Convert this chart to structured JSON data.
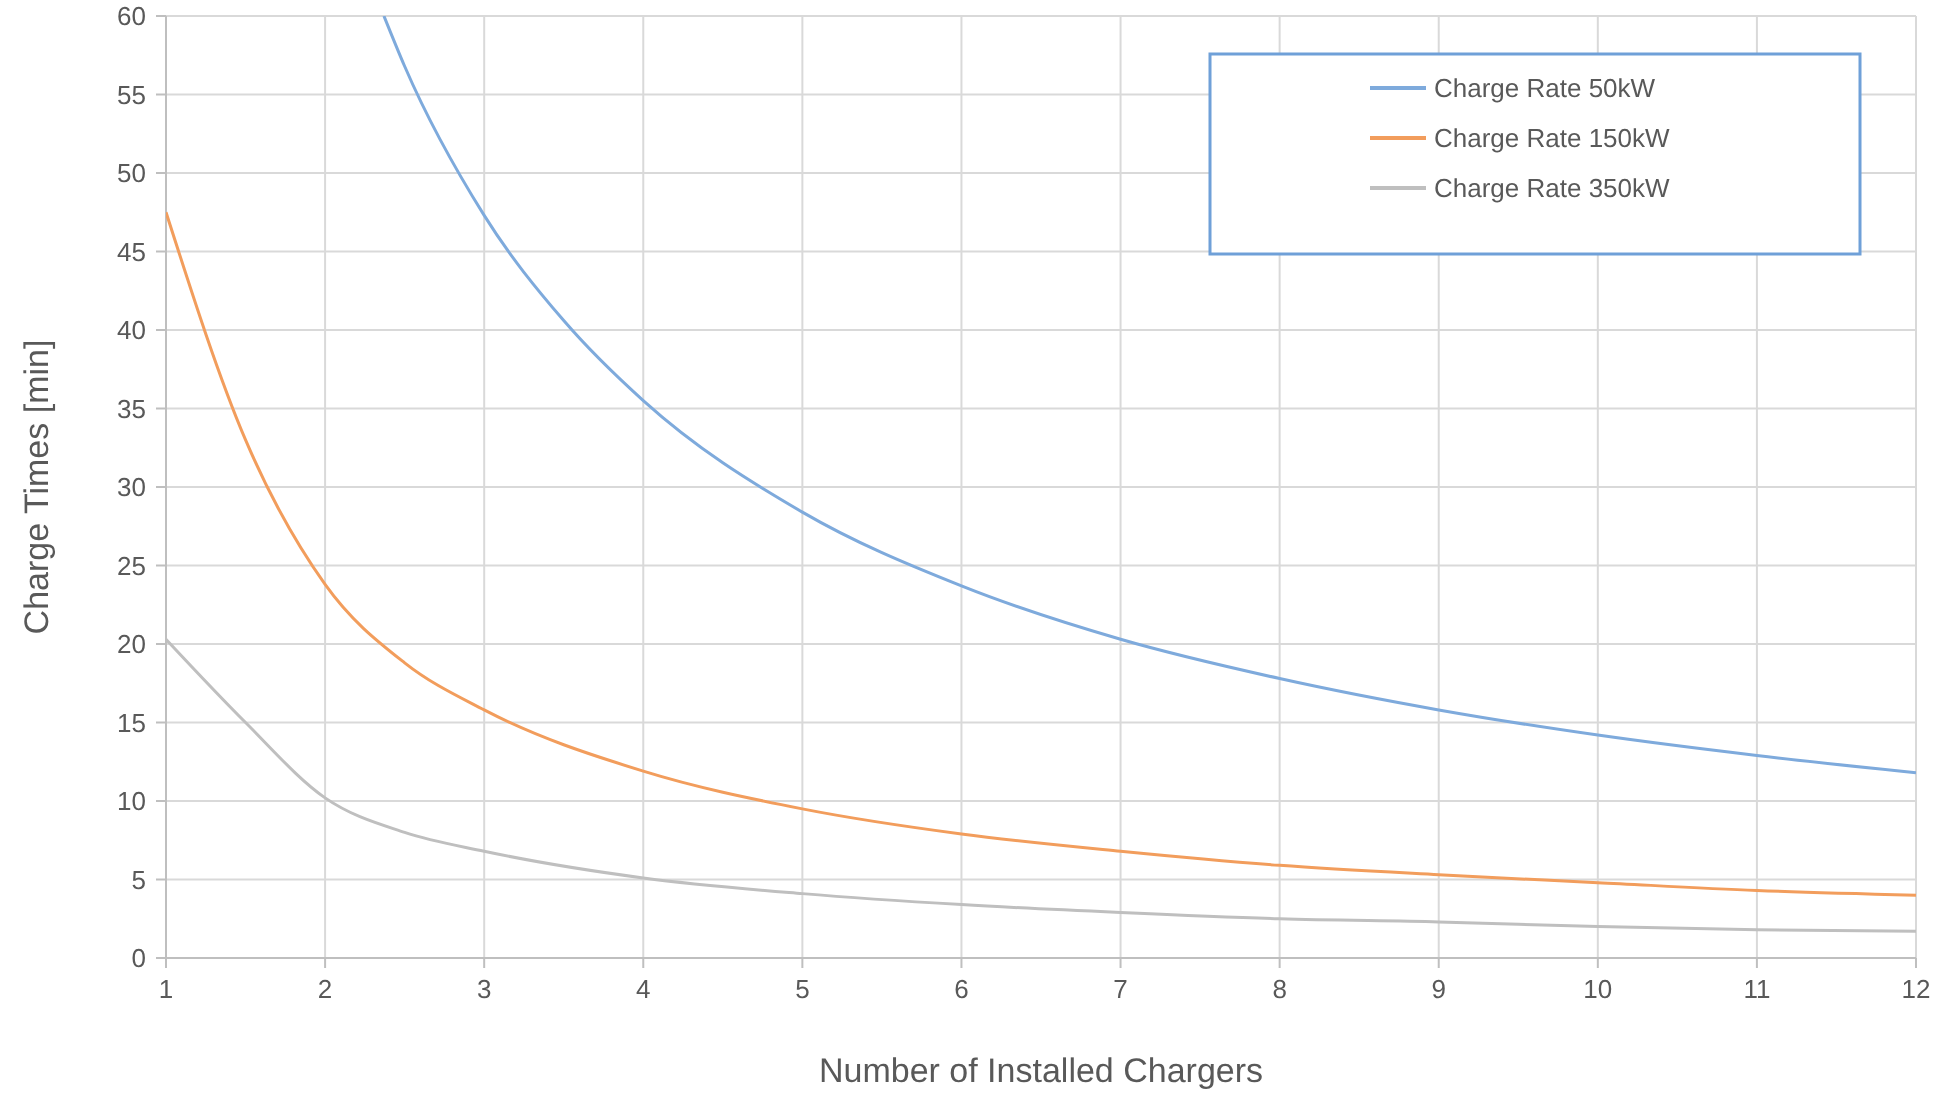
{
  "chart_data": {
    "type": "line",
    "xlabel": "Number of Installed Chargers",
    "ylabel": "Charge Times [min]",
    "xlim": [
      1,
      12
    ],
    "xticks": [
      1,
      2,
      3,
      4,
      5,
      6,
      7,
      8,
      9,
      10,
      11,
      12
    ],
    "ylim": [
      0,
      60
    ],
    "yticks": [
      0,
      5,
      10,
      15,
      20,
      25,
      30,
      35,
      40,
      45,
      50,
      55,
      60
    ],
    "grid": true,
    "legend": "top right",
    "marker": "none",
    "line_style": "solid",
    "series": [
      {
        "name": "Charge Rate 50kW",
        "color": "#7eaadc",
        "x": [
          2.37,
          2.5,
          3,
          3.5,
          4,
          5,
          6,
          7,
          8,
          9,
          10,
          11,
          12
        ],
        "values": [
          60,
          56.8,
          47.3,
          40.6,
          35.5,
          28.4,
          23.7,
          20.3,
          17.8,
          15.8,
          14.2,
          12.9,
          11.8
        ]
      },
      {
        "name": "Charge Rate 150kW",
        "color": "#f29d5c",
        "x": [
          1,
          1.5,
          2,
          2.5,
          3,
          4,
          5,
          6,
          7,
          8,
          9,
          10,
          11,
          12
        ],
        "values": [
          47.5,
          33,
          23.8,
          18.8,
          15.8,
          11.9,
          9.5,
          7.9,
          6.8,
          5.9,
          5.3,
          4.8,
          4.3,
          4.0
        ]
      },
      {
        "name": "Charge Rate 350kW",
        "color": "#bfbfbf",
        "x": [
          1,
          1.5,
          2,
          2.5,
          3,
          4,
          5,
          6,
          7,
          8,
          9,
          10,
          11,
          12
        ],
        "values": [
          20.3,
          15,
          10.2,
          8,
          6.8,
          5.1,
          4.1,
          3.4,
          2.9,
          2.5,
          2.3,
          2.0,
          1.8,
          1.7
        ]
      }
    ]
  }
}
